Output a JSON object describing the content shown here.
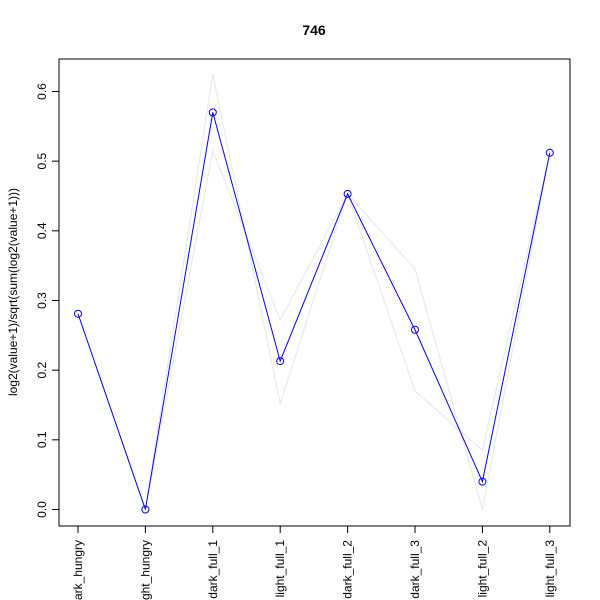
{
  "chart_data": {
    "type": "line",
    "title": "746",
    "xlabel": "",
    "ylabel": "log2(value+1)/sqrt(sum(log2(value+1)))",
    "categories": [
      "dark_hungry",
      "light_hungry",
      "dark_full_1",
      "light_full_1",
      "dark_full_2",
      "dark_full_3",
      "light_full_2",
      "light_full_3"
    ],
    "category_labels_visible": [
      "ark_hungry",
      "ght_hungry",
      "dark_full_1",
      "light_full_1",
      "dark_full_2",
      "dark_full_3",
      "light_full_2",
      "light_full_3"
    ],
    "ylim": [
      -0.025,
      0.65
    ],
    "yticks": [
      0.0,
      0.1,
      0.2,
      0.3,
      0.4,
      0.5,
      0.6
    ],
    "ytick_labels": [
      "0.0",
      "0.1",
      "0.2",
      "0.3",
      "0.4",
      "0.5",
      "0.6"
    ],
    "grid": false,
    "series": [
      {
        "values": [
          0.281,
          0.0,
          0.57,
          0.213,
          0.453,
          0.258,
          0.04,
          0.512
        ],
        "color": "#0000ff",
        "markers": "open-circle"
      }
    ],
    "background_series": [
      {
        "values": [
          0.281,
          0.0,
          0.625,
          0.152,
          0.453,
          0.345,
          0.0,
          0.512
        ],
        "color": "#e6e6e6"
      },
      {
        "values": [
          0.281,
          0.0,
          0.515,
          0.272,
          0.453,
          0.17,
          0.085,
          0.512
        ],
        "color": "#e6e6e6"
      }
    ]
  }
}
